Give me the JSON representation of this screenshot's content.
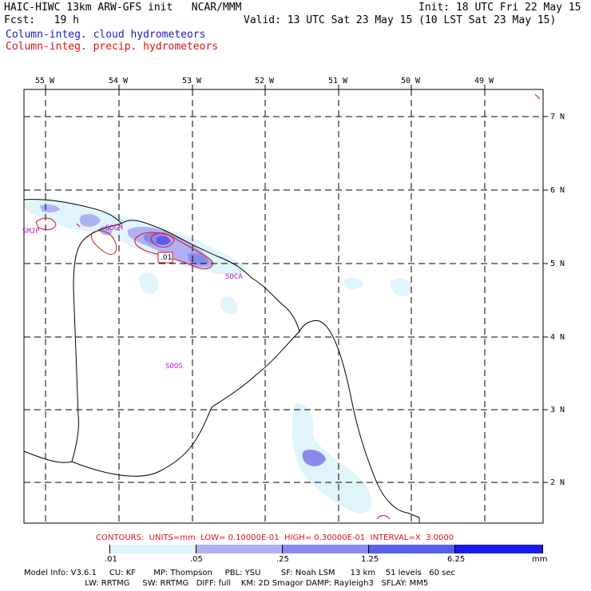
{
  "header": {
    "title": "HAIC-HIWC 13km ARW-GFS init   NCAR/MMM",
    "init": "Init: 18 UTC Fri 22 May 15",
    "fcst": "Fcst:   19 h",
    "valid": "Valid: 13 UTC Sat 23 May 15 (10 LST Sat 23 May 15)",
    "field1": "Column-integ. cloud hydrometeors",
    "field2": "Column-integ. precip. hydrometeors",
    "field1_color": "#1a1acd",
    "field2_color": "#e01010"
  },
  "map": {
    "lon_labels": [
      "55 W",
      "54 W",
      "53 W",
      "52 W",
      "51 W",
      "50 W",
      "49 W"
    ],
    "lat_labels": [
      "7 N",
      "6 N",
      "5 N",
      "4 N",
      "3 N",
      "2 N"
    ],
    "stations": [
      "SMJP",
      "SOGM",
      "SOCA",
      "SOOS"
    ],
    "contour_label": ".01",
    "station_color": "#d010d0"
  },
  "legend": {
    "contours_text": "CONTOURS:  UNITS=mm  LOW= 0.10000E-01  HIGH= 0.30000E-01  INTERVAL=X  3.0000",
    "levels": [
      ".01",
      ".05",
      ".25",
      "1.25",
      "6.25"
    ],
    "units": "mm",
    "colors": [
      "#ffffff",
      "#dff4fb",
      "#b0b0f4",
      "#8a8aee",
      "#5c5cea",
      "#1a1ae6"
    ]
  },
  "footer": {
    "model_info": "Model Info: V3.6.1     CU: KF       MP: Thompson     PBL: YSU        SF: Noah LSM      13 km    51 levels   60 sec",
    "model_info2": "                        LW: RRTMG     SW: RRTMG   DIFF: full    KM: 2D Smagor DAMP: Rayleigh3   SFLAY: MM5"
  }
}
